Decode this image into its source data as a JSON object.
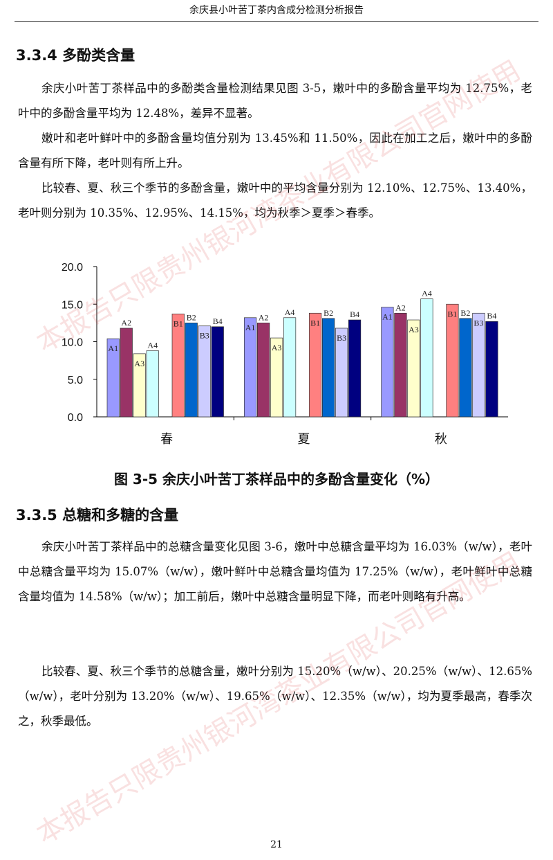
{
  "header": {
    "title": "余庆县小叶苦丁茶内含成分检测分析报告"
  },
  "section_polyphenol": {
    "heading": "3.3.4 多酚类含量",
    "paragraphs": [
      "余庆小叶苦丁茶样品中的多酚类含量检测结果见图 3-5，嫩叶中的多酚含量平均为 12.75%，老叶中的多酚含量平均为 12.48%，差异不显著。",
      "嫩叶和老叶鲜叶中的多酚含量均值分别为 13.45%和 11.50%，因此在加工之后，嫩叶中的多酚含量有所下降，老叶则有所上升。",
      "比较春、夏、秋三个季节的多酚含量，嫩叶中的平均含量分别为 12.10%、12.75%、13.40%，老叶则分别为 10.35%、12.95%、14.15%，均为秋季＞夏季＞春季。"
    ]
  },
  "figure": {
    "caption": "图 3-5 余庆小叶苦丁茶样品中的多酚含量变化（%）"
  },
  "chart_data": {
    "type": "bar",
    "categories": [
      "春",
      "夏",
      "秋"
    ],
    "series": [
      {
        "name": "A1",
        "values": [
          10.4,
          13.2,
          14.6
        ],
        "color": "#9999ff"
      },
      {
        "name": "A2",
        "values": [
          11.8,
          12.5,
          13.8
        ],
        "color": "#993366"
      },
      {
        "name": "A3",
        "values": [
          8.4,
          10.5,
          12.9
        ],
        "color": "#ffffcc"
      },
      {
        "name": "A4",
        "values": [
          8.8,
          13.2,
          15.7
        ],
        "color": "#ccffff"
      },
      {
        "name": "B1",
        "values": [
          13.7,
          13.8,
          15.0
        ],
        "color": "#ff8080"
      },
      {
        "name": "B2",
        "values": [
          12.5,
          13.1,
          13.1
        ],
        "color": "#0066cc"
      },
      {
        "name": "B3",
        "values": [
          12.1,
          11.8,
          13.8
        ],
        "color": "#ccccff"
      },
      {
        "name": "B4",
        "values": [
          12.0,
          12.9,
          12.7
        ],
        "color": "#000080"
      }
    ],
    "yticks": [
      "0.0",
      "5.0",
      "10.0",
      "15.0",
      "20.0"
    ],
    "ylim": [
      0,
      20
    ],
    "grid": false
  },
  "section_sugar": {
    "heading": "3.3.5 总糖和多糖的含量",
    "paragraphs": [
      "余庆小叶苦丁茶样品中的总糖含量变化见图 3-6，嫩叶中总糖含量平均为 16.03%（w/w），老叶中总糖含量平均为 15.07%（w/w），嫩叶鲜叶中总糖含量均值为 17.25%（w/w），老叶鲜叶中总糖含量均值为 14.58%（w/w）；加工前后，嫩叶中总糖含量明显下降，而老叶则略有升高。",
      "比较春、夏、秋三个季节的总糖含量，嫩叶分别为 15.20%（w/w）、20.25%（w/w）、12.65%（w/w），老叶分别为 13.20%（w/w）、19.65%（w/w）、12.35%（w/w），均为夏季最高，春季次之，秋季最低。"
    ]
  },
  "watermark": {
    "text": "本报告只限贵州银河湾茶业有限公司官网使用",
    "color": "#d74646"
  },
  "footer": {
    "page_number": "21"
  }
}
